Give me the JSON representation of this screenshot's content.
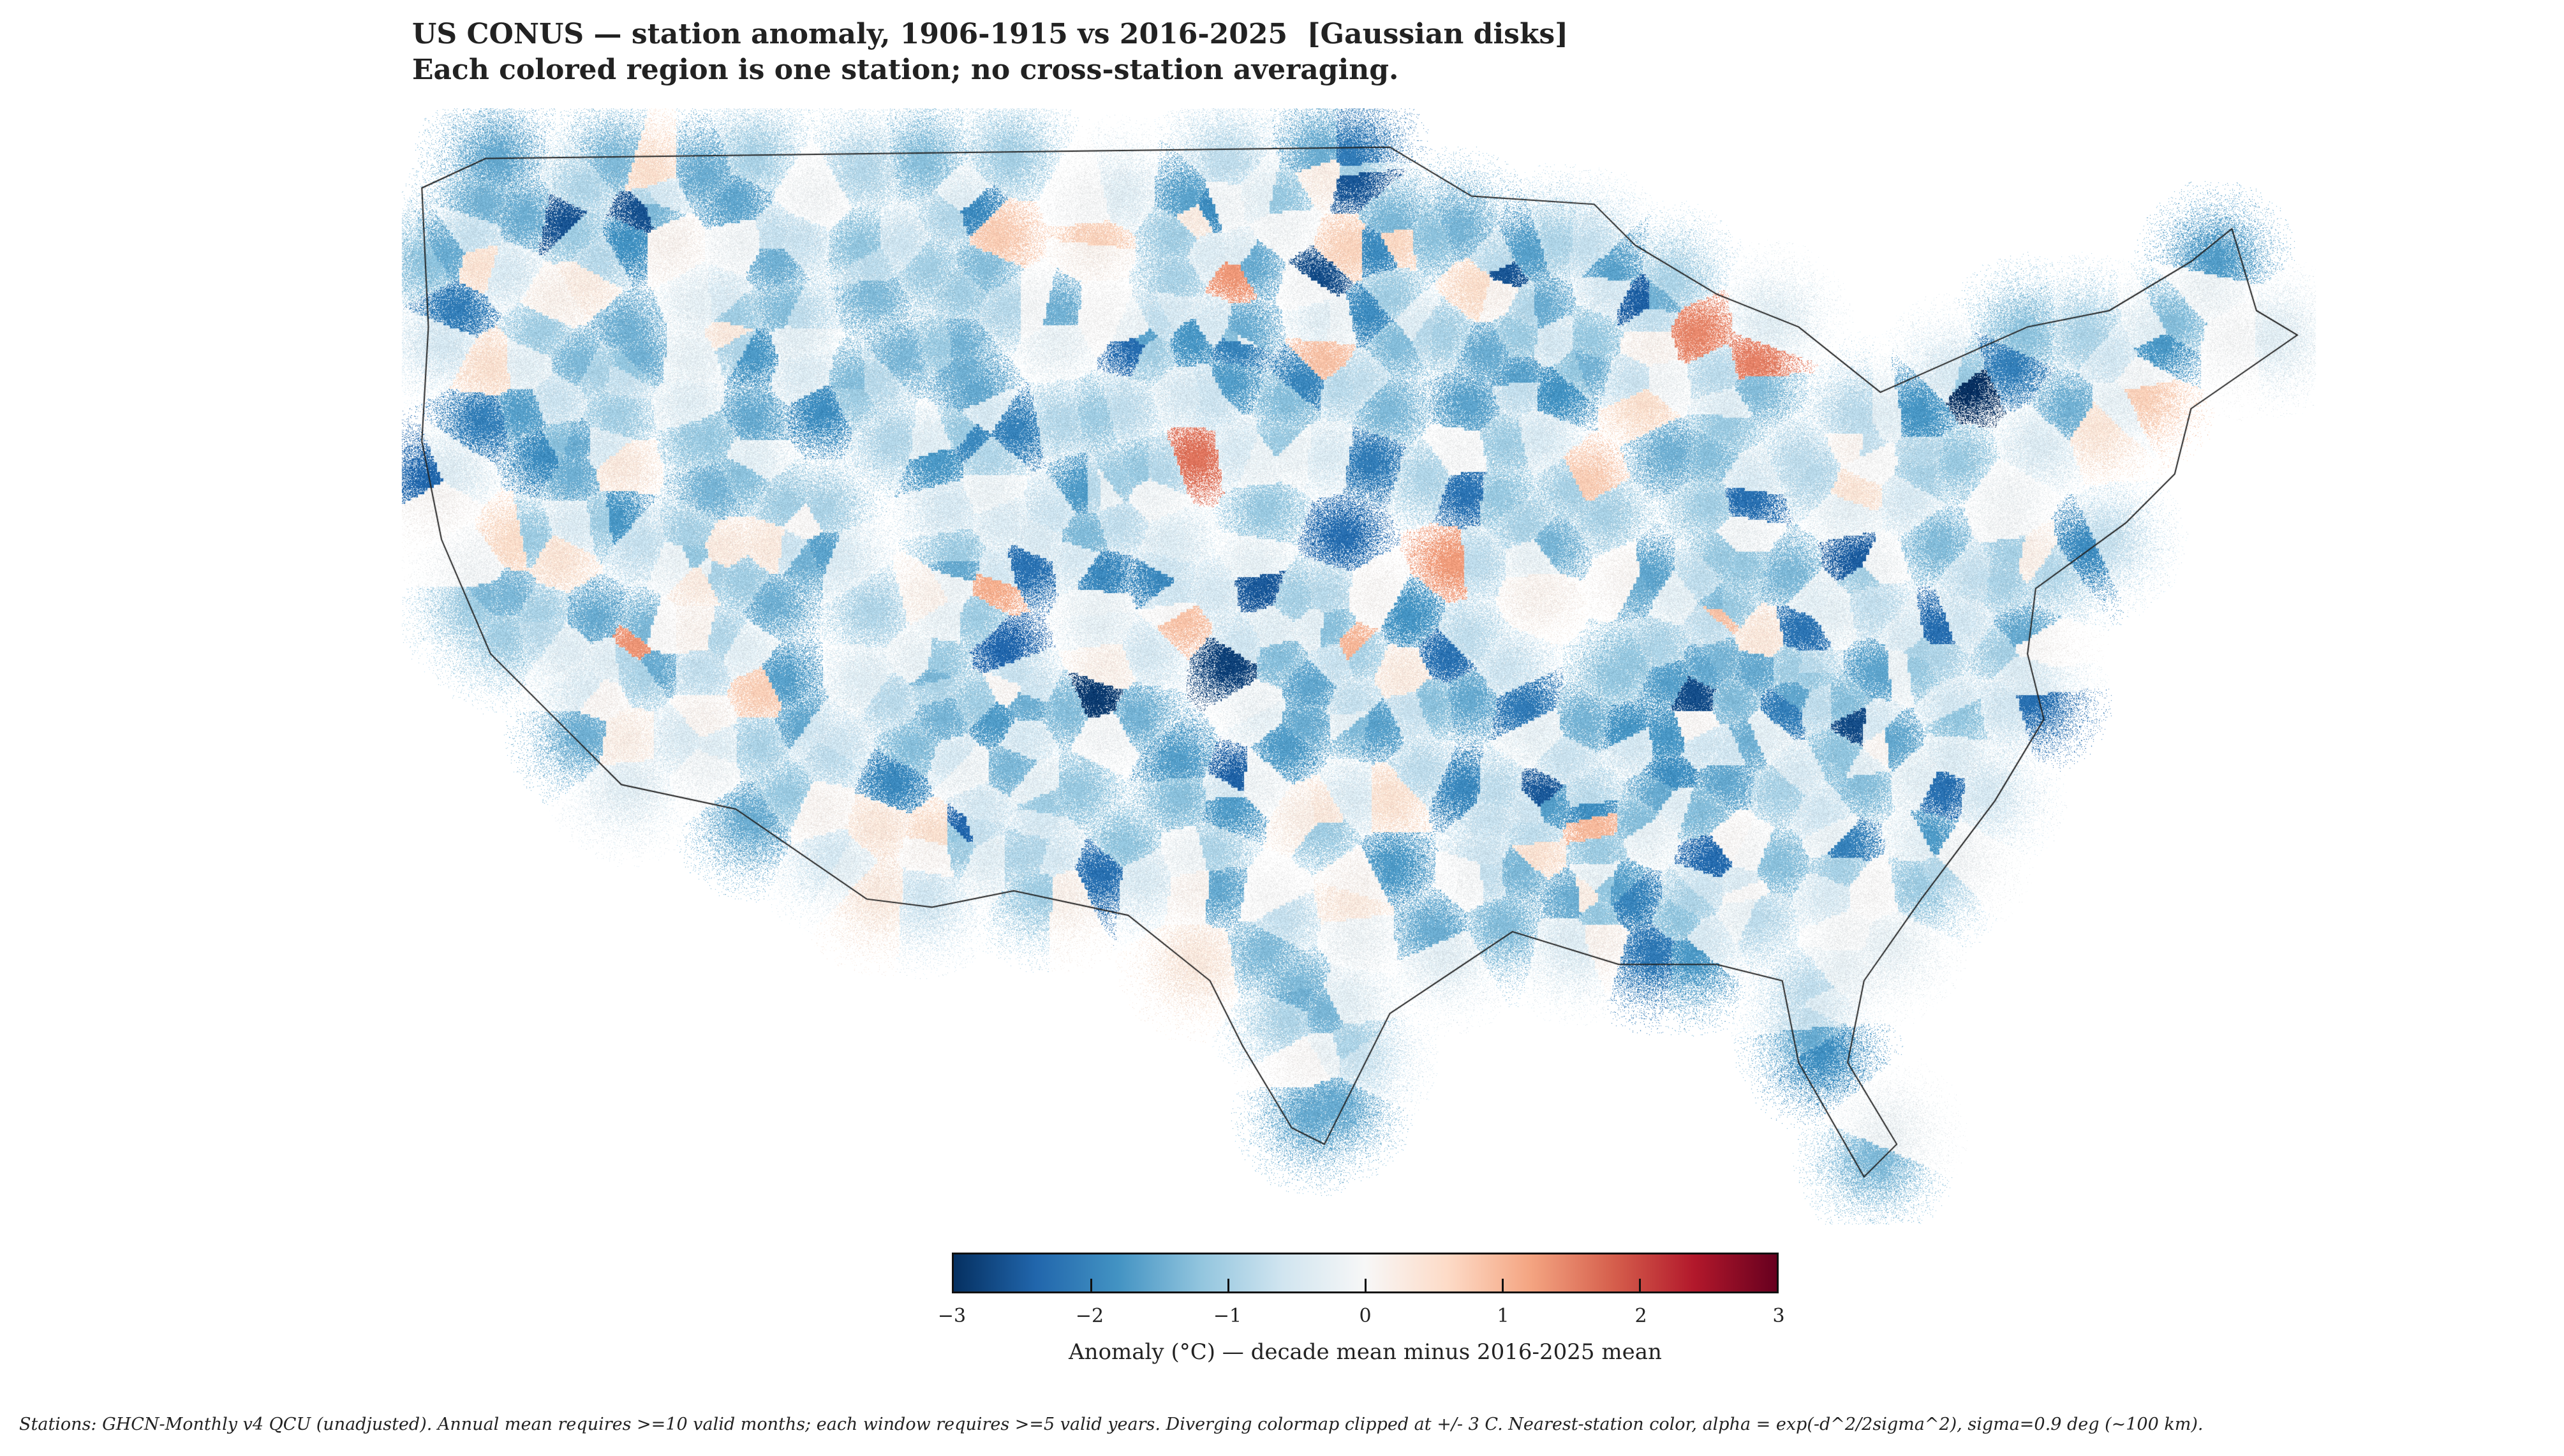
{
  "title": {
    "line1": "US CONUS — station anomaly, 1906-1915 vs 2016-2025  [Gaussian disks]",
    "line2": "Each colored region is one station; no cross-station averaging."
  },
  "colorbar": {
    "label": "Anomaly (°C) — decade mean minus 2016-2025 mean",
    "ticks": [
      "−3",
      "−2",
      "−1",
      "0",
      "1",
      "2",
      "3"
    ],
    "range": [
      -3,
      3
    ],
    "colormap": [
      "#053061",
      "#2166ac",
      "#4393c3",
      "#92c5de",
      "#d1e5f0",
      "#f7f7f7",
      "#fddbc7",
      "#f4a582",
      "#d6604d",
      "#b2182b",
      "#67001f"
    ]
  },
  "map": {
    "region": "US CONUS",
    "dominant_anomaly": "negative (blue)",
    "boundary_color": "#222222"
  },
  "footer": "Stations: GHCN-Monthly v4 QCU (unadjusted). Annual mean requires >=10 valid months; each window requires >=5 valid years. Diverging colormap clipped at +/- 3 C. Nearest-station color, alpha = exp(-d^2/2sigma^2), sigma=0.9 deg (~100 km)."
}
